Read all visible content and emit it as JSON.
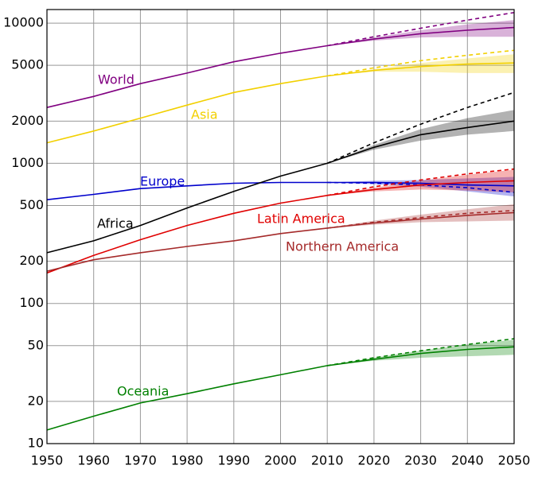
{
  "chart_data": {
    "type": "line",
    "log_scale": true,
    "grid": true,
    "x": [
      1950,
      1960,
      1970,
      1980,
      1990,
      2000,
      2010,
      2020,
      2030,
      2040,
      2050
    ],
    "xlim": [
      1950,
      2050
    ],
    "xticks": [
      1950,
      1960,
      1970,
      1980,
      1990,
      2000,
      2010,
      2020,
      2030,
      2040,
      2050
    ],
    "ylim": [
      10,
      12500
    ],
    "yticks": [
      10,
      20,
      50,
      100,
      200,
      500,
      1000,
      2000,
      5000,
      10000
    ],
    "series": [
      {
        "name": "World",
        "color": "#800080",
        "values": [
          2500,
          3000,
          3700,
          4400,
          5300,
          6100,
          6900,
          7700,
          8400,
          8900,
          9300
        ],
        "high": [
          null,
          null,
          null,
          null,
          null,
          null,
          6900,
          8000,
          9200,
          10500,
          11900
        ],
        "band_low": [
          null,
          null,
          null,
          null,
          null,
          null,
          6900,
          7500,
          7900,
          8000,
          8000
        ],
        "band_high": [
          null,
          null,
          null,
          null,
          null,
          null,
          6900,
          7900,
          8900,
          9800,
          10500
        ]
      },
      {
        "name": "Asia",
        "color": "#f2d000",
        "values": [
          1400,
          1700,
          2100,
          2600,
          3200,
          3700,
          4200,
          4600,
          4900,
          5100,
          5200
        ],
        "high": [
          null,
          null,
          null,
          null,
          null,
          null,
          4200,
          4800,
          5400,
          5900,
          6400
        ],
        "band_low": [
          null,
          null,
          null,
          null,
          null,
          null,
          4200,
          4500,
          4500,
          4400,
          4400
        ],
        "band_high": [
          null,
          null,
          null,
          null,
          null,
          null,
          4200,
          4700,
          5200,
          5600,
          6000
        ]
      },
      {
        "name": "Europe",
        "color": "#0000cc",
        "values": [
          550,
          600,
          660,
          690,
          720,
          730,
          730,
          730,
          720,
          700,
          690
        ],
        "high": [
          null,
          null,
          null,
          null,
          null,
          null,
          730,
          720,
          700,
          670,
          620
        ],
        "band_low": [
          null,
          null,
          null,
          null,
          null,
          null,
          730,
          710,
          680,
          630,
          580
        ],
        "band_high": [
          null,
          null,
          null,
          null,
          null,
          null,
          730,
          750,
          760,
          780,
          800
        ]
      },
      {
        "name": "Africa",
        "color": "#000000",
        "values": [
          230,
          280,
          360,
          480,
          630,
          810,
          1000,
          1300,
          1600,
          1800,
          2000
        ],
        "high": [
          null,
          null,
          null,
          null,
          null,
          null,
          1000,
          1400,
          1900,
          2500,
          3200
        ],
        "band_low": [
          null,
          null,
          null,
          null,
          null,
          null,
          1000,
          1250,
          1450,
          1600,
          1700
        ],
        "band_high": [
          null,
          null,
          null,
          null,
          null,
          null,
          1000,
          1350,
          1750,
          2100,
          2400
        ]
      },
      {
        "name": "Latin America",
        "color": "#e00000",
        "values": [
          165,
          220,
          285,
          360,
          440,
          520,
          590,
          650,
          700,
          730,
          750
        ],
        "high": [
          null,
          null,
          null,
          null,
          null,
          null,
          590,
          680,
          760,
          840,
          910
        ],
        "band_low": [
          null,
          null,
          null,
          null,
          null,
          null,
          590,
          630,
          650,
          640,
          620
        ],
        "band_high": [
          null,
          null,
          null,
          null,
          null,
          null,
          590,
          670,
          750,
          830,
          900
        ]
      },
      {
        "name": "Northern America",
        "color": "#a52a2a",
        "values": [
          170,
          205,
          230,
          255,
          280,
          315,
          345,
          375,
          400,
          425,
          445
        ],
        "high": [
          null,
          null,
          null,
          null,
          null,
          null,
          345,
          380,
          410,
          440,
          460
        ],
        "band_low": [
          null,
          null,
          null,
          null,
          null,
          null,
          345,
          365,
          380,
          385,
          390
        ],
        "band_high": [
          null,
          null,
          null,
          null,
          null,
          null,
          345,
          390,
          430,
          470,
          510
        ]
      },
      {
        "name": "Oceania",
        "color": "#008000",
        "values": [
          12.5,
          15.7,
          19.5,
          22.7,
          26.7,
          31,
          36,
          40,
          44,
          47,
          49
        ],
        "high": [
          null,
          null,
          null,
          null,
          null,
          null,
          36,
          41,
          46,
          51,
          56
        ],
        "band_low": [
          null,
          null,
          null,
          null,
          null,
          null,
          36,
          39,
          41,
          42,
          43
        ],
        "band_high": [
          null,
          null,
          null,
          null,
          null,
          null,
          36,
          41,
          46,
          51,
          55
        ]
      }
    ]
  }
}
